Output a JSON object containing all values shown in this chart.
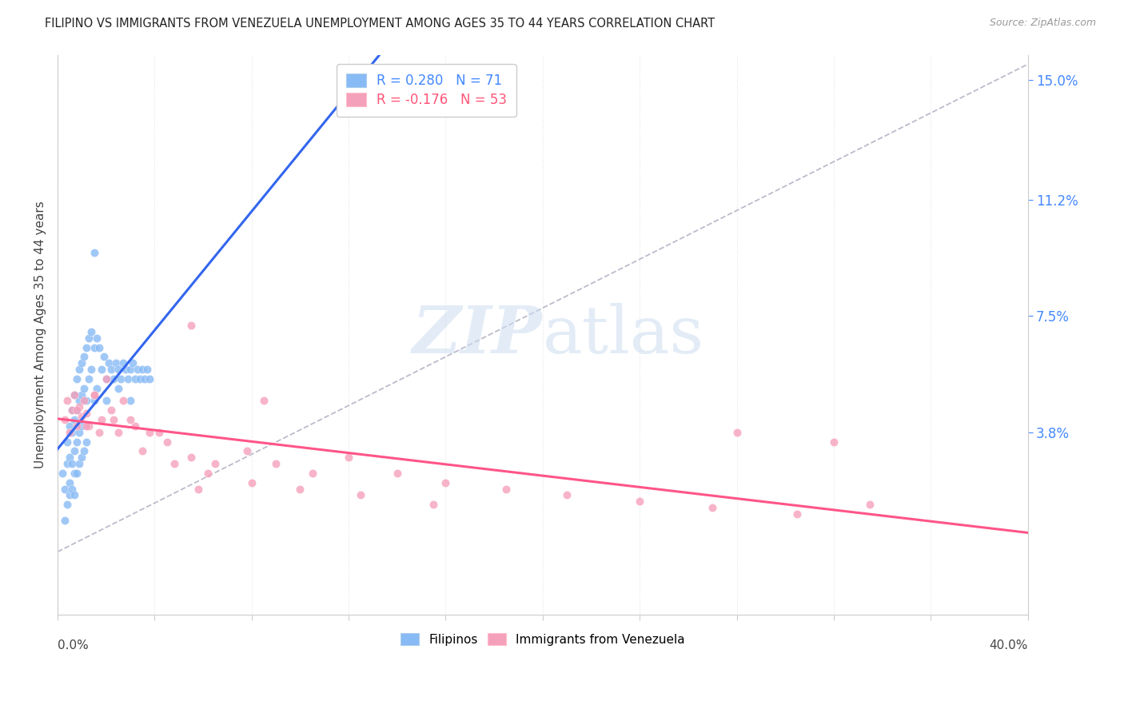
{
  "title": "FILIPINO VS IMMIGRANTS FROM VENEZUELA UNEMPLOYMENT AMONG AGES 35 TO 44 YEARS CORRELATION CHART",
  "source": "Source: ZipAtlas.com",
  "ylabel": "Unemployment Among Ages 35 to 44 years",
  "ytick_labels": [
    "3.8%",
    "7.5%",
    "11.2%",
    "15.0%"
  ],
  "ytick_values": [
    0.038,
    0.075,
    0.112,
    0.15
  ],
  "xlim": [
    0.0,
    0.4
  ],
  "ylim": [
    -0.02,
    0.158
  ],
  "r_filipino": 0.28,
  "n_filipino": 71,
  "r_venezuela": -0.176,
  "n_venezuela": 53,
  "watermark_zip_color": "#ccddf0",
  "watermark_atlas_color": "#ccddf0",
  "filipinos_color": "#88bbf5",
  "venezuela_color": "#f5a0bb",
  "trendline_filipino_color": "#3366ee",
  "trendline_venezuela_color": "#ff5588",
  "dashed_line_color": "#bbbbcc",
  "background_color": "#ffffff",
  "grid_color": "#e5e5e5",
  "title_color": "#222222",
  "source_color": "#999999",
  "axis_label_color": "#444444",
  "right_tick_color": "#4488ff",
  "bottom_tick_color": "#444444",
  "legend_color_1": "#4488ff",
  "legend_color_2": "#ff5577",
  "filipinos_x": [
    0.002,
    0.003,
    0.003,
    0.004,
    0.004,
    0.004,
    0.005,
    0.005,
    0.005,
    0.005,
    0.006,
    0.006,
    0.006,
    0.006,
    0.007,
    0.007,
    0.007,
    0.007,
    0.007,
    0.008,
    0.008,
    0.008,
    0.008,
    0.009,
    0.009,
    0.009,
    0.009,
    0.01,
    0.01,
    0.01,
    0.01,
    0.011,
    0.011,
    0.011,
    0.012,
    0.012,
    0.012,
    0.013,
    0.013,
    0.014,
    0.014,
    0.015,
    0.015,
    0.016,
    0.016,
    0.017,
    0.018,
    0.019,
    0.02,
    0.021,
    0.022,
    0.023,
    0.024,
    0.025,
    0.026,
    0.027,
    0.028,
    0.029,
    0.03,
    0.031,
    0.032,
    0.033,
    0.034,
    0.035,
    0.036,
    0.037,
    0.038,
    0.03,
    0.025,
    0.02,
    0.015
  ],
  "filipinos_y": [
    0.025,
    0.01,
    0.02,
    0.035,
    0.028,
    0.015,
    0.04,
    0.03,
    0.022,
    0.018,
    0.045,
    0.038,
    0.028,
    0.02,
    0.05,
    0.042,
    0.032,
    0.025,
    0.018,
    0.055,
    0.045,
    0.035,
    0.025,
    0.058,
    0.048,
    0.038,
    0.028,
    0.06,
    0.05,
    0.04,
    0.03,
    0.062,
    0.052,
    0.032,
    0.065,
    0.048,
    0.035,
    0.068,
    0.055,
    0.07,
    0.058,
    0.065,
    0.048,
    0.068,
    0.052,
    0.065,
    0.058,
    0.062,
    0.055,
    0.06,
    0.058,
    0.055,
    0.06,
    0.058,
    0.055,
    0.06,
    0.058,
    0.055,
    0.058,
    0.06,
    0.055,
    0.058,
    0.055,
    0.058,
    0.055,
    0.058,
    0.055,
    0.048,
    0.052,
    0.048,
    0.095
  ],
  "venezuela_x": [
    0.003,
    0.004,
    0.005,
    0.006,
    0.007,
    0.008,
    0.009,
    0.01,
    0.011,
    0.012,
    0.013,
    0.015,
    0.017,
    0.02,
    0.023,
    0.027,
    0.032,
    0.038,
    0.045,
    0.055,
    0.065,
    0.078,
    0.09,
    0.105,
    0.12,
    0.14,
    0.16,
    0.185,
    0.21,
    0.24,
    0.27,
    0.305,
    0.335,
    0.008,
    0.012,
    0.018,
    0.025,
    0.035,
    0.048,
    0.062,
    0.08,
    0.1,
    0.125,
    0.155,
    0.055,
    0.085,
    0.28,
    0.32,
    0.015,
    0.022,
    0.03,
    0.042,
    0.058
  ],
  "venezuela_y": [
    0.042,
    0.048,
    0.038,
    0.045,
    0.05,
    0.04,
    0.046,
    0.043,
    0.048,
    0.044,
    0.04,
    0.05,
    0.038,
    0.055,
    0.042,
    0.048,
    0.04,
    0.038,
    0.035,
    0.03,
    0.028,
    0.032,
    0.028,
    0.025,
    0.03,
    0.025,
    0.022,
    0.02,
    0.018,
    0.016,
    0.014,
    0.012,
    0.015,
    0.045,
    0.04,
    0.042,
    0.038,
    0.032,
    0.028,
    0.025,
    0.022,
    0.02,
    0.018,
    0.015,
    0.072,
    0.048,
    0.038,
    0.035,
    0.05,
    0.045,
    0.042,
    0.038,
    0.02
  ]
}
